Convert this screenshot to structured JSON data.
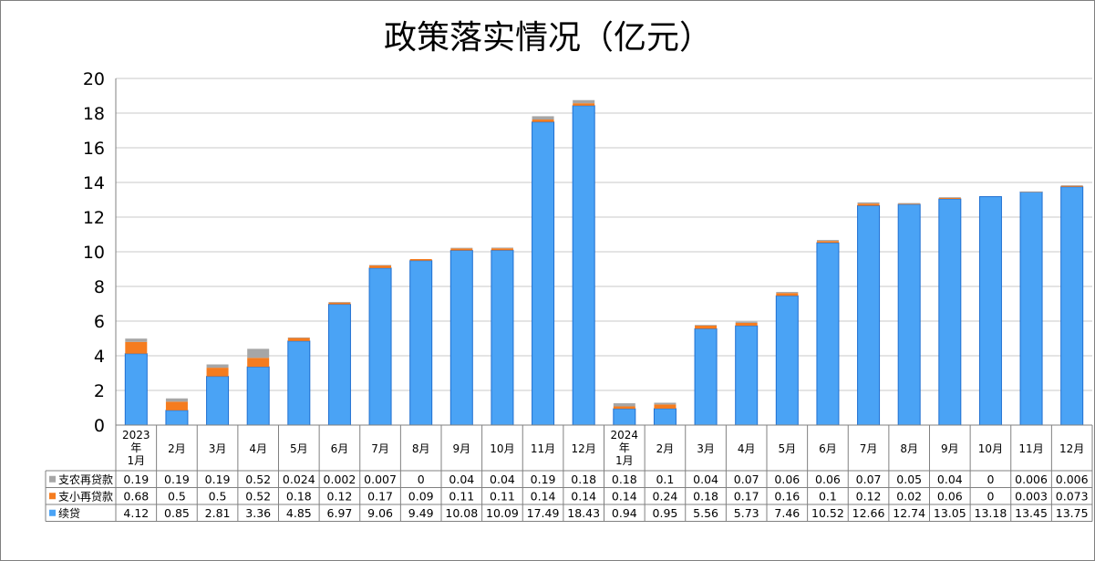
{
  "chart_data": {
    "type": "bar",
    "stacked": true,
    "title": "政策落实情况（亿元）",
    "ylim": [
      0,
      20
    ],
    "yticks": [
      0,
      2,
      4,
      6,
      8,
      10,
      12,
      14,
      16,
      18,
      20
    ],
    "grid": true,
    "legend": "data-table",
    "categories": [
      [
        "2023",
        "年",
        "1月"
      ],
      [
        "2月"
      ],
      [
        "3月"
      ],
      [
        "4月"
      ],
      [
        "5月"
      ],
      [
        "6月"
      ],
      [
        "7月"
      ],
      [
        "8月"
      ],
      [
        "9月"
      ],
      [
        "10月"
      ],
      [
        "11月"
      ],
      [
        "12月"
      ],
      [
        "2024",
        "年",
        "1月"
      ],
      [
        "2月"
      ],
      [
        "3月"
      ],
      [
        "4月"
      ],
      [
        "5月"
      ],
      [
        "6月"
      ],
      [
        "7月"
      ],
      [
        "8月"
      ],
      [
        "9月"
      ],
      [
        "10月"
      ],
      [
        "11月"
      ],
      [
        "12月"
      ]
    ],
    "series": [
      {
        "name": "续贷",
        "color": "#4aa3f5",
        "values": [
          4.12,
          0.85,
          2.81,
          3.36,
          4.85,
          6.97,
          9.06,
          9.49,
          10.08,
          10.09,
          17.49,
          18.43,
          0.94,
          0.95,
          5.56,
          5.73,
          7.46,
          10.52,
          12.66,
          12.74,
          13.05,
          13.18,
          13.45,
          13.75
        ],
        "labels": [
          "4.12",
          "0.85",
          "2.81",
          "3.36",
          "4.85",
          "6.97",
          "9.06",
          "9.49",
          "10.08",
          "10.09",
          "17.49",
          "18.43",
          "0.94",
          "0.95",
          "5.56",
          "5.73",
          "7.46",
          "10.52",
          "12.66",
          "12.74",
          "13.05",
          "13.18",
          "13.45",
          "13.75"
        ]
      },
      {
        "name": "支小再贷款",
        "color": "#f57c1f",
        "values": [
          0.68,
          0.5,
          0.5,
          0.52,
          0.18,
          0.12,
          0.17,
          0.09,
          0.11,
          0.11,
          0.14,
          0.14,
          0.14,
          0.24,
          0.18,
          0.17,
          0.16,
          0.1,
          0.12,
          0.02,
          0.06,
          0,
          0.003,
          0.073
        ],
        "labels": [
          "0.68",
          "0.5",
          "0.5",
          "0.52",
          "0.18",
          "0.12",
          "0.17",
          "0.09",
          "0.11",
          "0.11",
          "0.14",
          "0.14",
          "0.14",
          "0.24",
          "0.18",
          "0.17",
          "0.16",
          "0.1",
          "0.12",
          "0.02",
          "0.06",
          "0",
          "0.003",
          "0.073"
        ]
      },
      {
        "name": "支农再贷款",
        "color": "#a6a6a6",
        "values": [
          0.19,
          0.19,
          0.19,
          0.52,
          0.024,
          0.002,
          0.007,
          0,
          0.04,
          0.04,
          0.19,
          0.18,
          0.18,
          0.1,
          0.04,
          0.07,
          0.06,
          0.06,
          0.07,
          0.05,
          0.04,
          0,
          0.006,
          0.006
        ],
        "labels": [
          "0.19",
          "0.19",
          "0.19",
          "0.52",
          "0.024",
          "0.002",
          "0.007",
          "0",
          "0.04",
          "0.04",
          "0.19",
          "0.18",
          "0.18",
          "0.1",
          "0.04",
          "0.07",
          "0.06",
          "0.06",
          "0.07",
          "0.05",
          "0.04",
          "0",
          "0.006",
          "0.006"
        ]
      }
    ]
  }
}
